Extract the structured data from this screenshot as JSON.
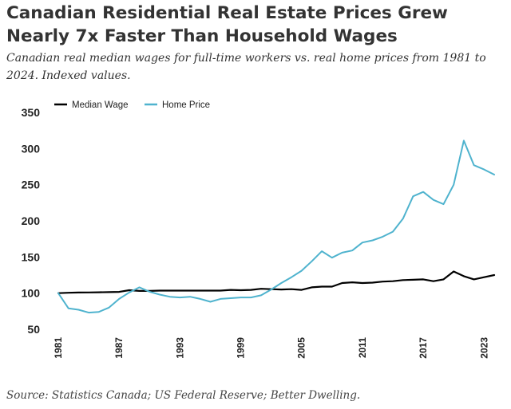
{
  "title": "Canadian Residential Real Estate Prices Grew Nearly 7x Faster Than Household Wages",
  "subtitle": "Canadian real median wages for full-time workers vs. real home prices from 1981 to 2024. Indexed values.",
  "source": "Source: Statistics Canada; US Federal Reserve; Better Dwelling.",
  "chart_data": {
    "type": "line",
    "title": "Canadian Residential Real Estate Prices Grew Nearly 7x Faster Than Household Wages",
    "xlabel": "",
    "ylabel": "",
    "ylim": [
      50,
      350
    ],
    "yticks": [
      "50",
      "100",
      "150",
      "200",
      "250",
      "300",
      "350"
    ],
    "xticks": [
      "1981",
      "1987",
      "1993",
      "1999",
      "2005",
      "2011",
      "2017",
      "2023"
    ],
    "legend_position": "top-left",
    "x": [
      1981,
      1982,
      1983,
      1984,
      1985,
      1986,
      1987,
      1988,
      1989,
      1990,
      1991,
      1992,
      1993,
      1994,
      1995,
      1996,
      1997,
      1998,
      1999,
      2000,
      2001,
      2002,
      2003,
      2004,
      2005,
      2006,
      2007,
      2008,
      2009,
      2010,
      2011,
      2012,
      2013,
      2014,
      2015,
      2016,
      2017,
      2018,
      2019,
      2020,
      2021,
      2022,
      2023,
      2024
    ],
    "series": [
      {
        "name": "Median Wage",
        "color": "#000000",
        "values": [
          100,
          100.5,
          100.8,
          101,
          101.2,
          101.4,
          101.7,
          104,
          103,
          103,
          103.5,
          103.5,
          103.5,
          103.5,
          103.5,
          103.5,
          103.5,
          104.5,
          104,
          104.5,
          106,
          105.5,
          105,
          105.5,
          104.5,
          108,
          109,
          109,
          114,
          115,
          114,
          114.5,
          116,
          116.5,
          118,
          118.5,
          119,
          116.5,
          119,
          130,
          123.5,
          119,
          122,
          125
        ]
      },
      {
        "name": "Home Price",
        "color": "#4fb3ce",
        "values": [
          100,
          79,
          77,
          73,
          74,
          80,
          92,
          101,
          108,
          102,
          98,
          95,
          94,
          95,
          92,
          88,
          92,
          93,
          94,
          94,
          97,
          105,
          114,
          122,
          131,
          144,
          158,
          149,
          156,
          159,
          170,
          173,
          178,
          185,
          203,
          234,
          240,
          229,
          223,
          250,
          311,
          277,
          271,
          264
        ]
      }
    ]
  }
}
